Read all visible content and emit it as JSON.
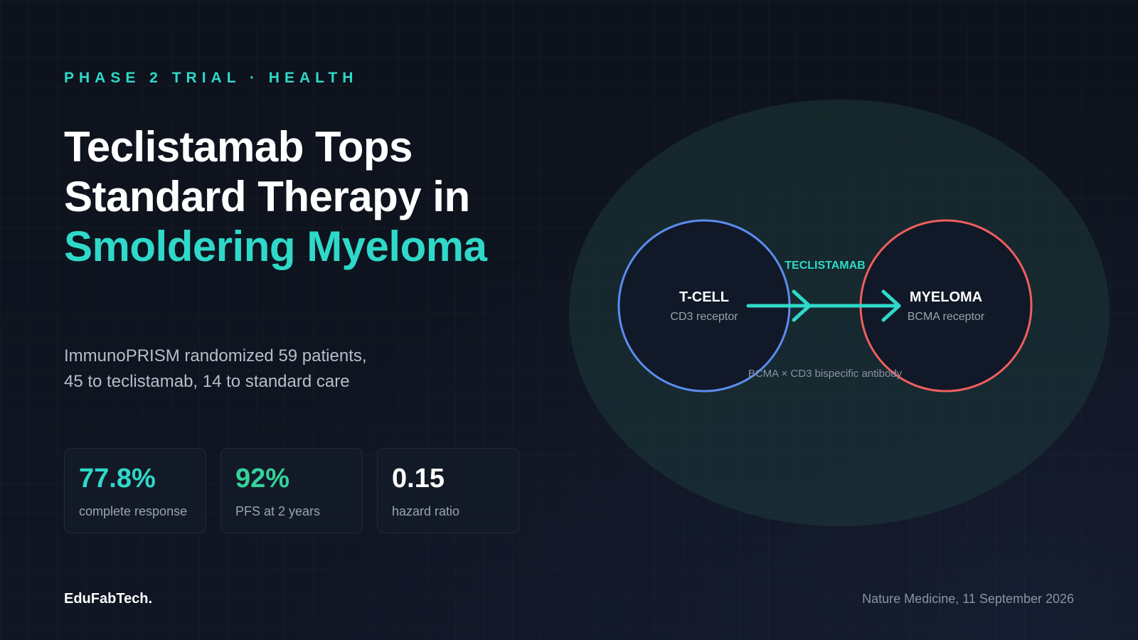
{
  "eyebrow": "PHASE 2 TRIAL · HEALTH",
  "headline": {
    "line1": "Teclistamab Tops",
    "line2": "Standard Therapy in",
    "line3": "Smoldering Myeloma"
  },
  "deck": {
    "line1": "ImmunoPRISM randomized 59 patients,",
    "line2": "45 to teclistamab, 14 to standard care"
  },
  "stats": [
    {
      "value": "77.8%",
      "label": "complete response",
      "color": "#2fd9c9"
    },
    {
      "value": "92%",
      "label": "PFS at 2 years",
      "color": "#34d399"
    },
    {
      "value": "0.15",
      "label": "hazard ratio",
      "color": "#ffffff"
    }
  ],
  "diagram": {
    "tcell": {
      "title": "T-CELL",
      "subtitle": "CD3 receptor",
      "color": "#5b8def"
    },
    "myeloma": {
      "title": "MYELOMA",
      "subtitle": "BCMA receptor",
      "color": "#ef5f5f"
    },
    "drug_label": "TECLISTAMAB",
    "mechanism_label": "BCMA × CD3 bispecific antibody",
    "accent_color": "#2fd9c9"
  },
  "footer": {
    "brand": "EduFabTech.",
    "source": "Nature Medicine, 11 September 2026"
  }
}
